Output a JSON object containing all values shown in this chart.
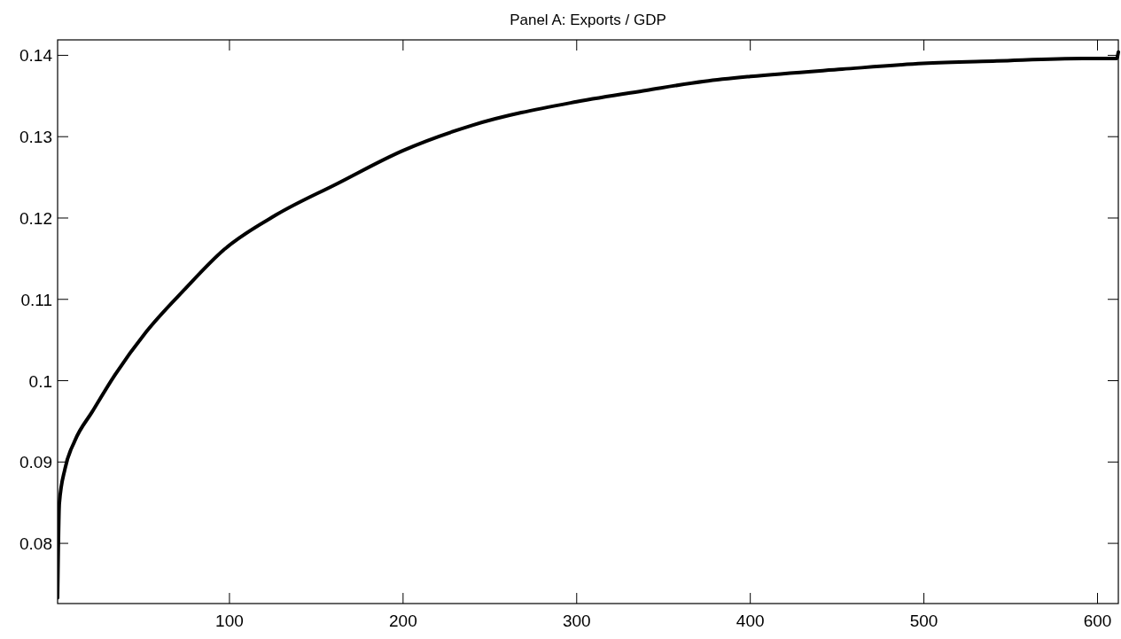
{
  "chart_data": {
    "type": "line",
    "title": "Panel A: Exports / GDP",
    "x": [
      1,
      2,
      5.3,
      10.9,
      21,
      34,
      52,
      74.5,
      96.8,
      127,
      161.8,
      200,
      239.9,
      300,
      340,
      373.7,
      400,
      453,
      499.6,
      542,
      591.5,
      611,
      612
    ],
    "series": [
      {
        "color": "#000000",
        "values": [
          0.0733,
          0.0849,
          0.0892,
          0.0926,
          0.0962,
          0.1007,
          0.106,
          0.1113,
          0.1161,
          0.1204,
          0.1242,
          0.1283,
          0.1314,
          0.1343,
          0.1357,
          0.1368,
          0.1374,
          0.1383,
          0.139,
          0.1393,
          0.1396,
          0.1396,
          0.1404
        ]
      }
    ],
    "xlim": [
      1,
      612
    ],
    "xticks": [
      100,
      200,
      300,
      400,
      500,
      600
    ],
    "ylim": [
      0.0726,
      0.1419
    ],
    "yticks": [
      0.08,
      0.09,
      0.1,
      0.11,
      0.12,
      0.13,
      0.14
    ],
    "grid": false,
    "marker": "none",
    "line_style": "solid"
  }
}
